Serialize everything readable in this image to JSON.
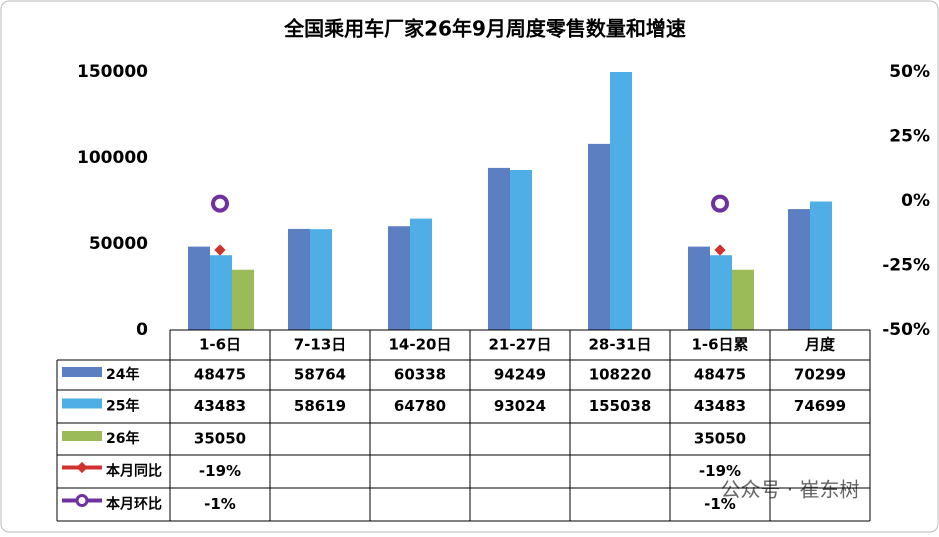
{
  "chart_data": {
    "type": "bar",
    "title": "全国乘用车厂家26年9月周度零售数量和增速",
    "categories": [
      "1-6日",
      "7-13日",
      "14-20日",
      "21-27日",
      "28-31日",
      "1-6日累",
      "月度"
    ],
    "series": [
      {
        "name": "24年",
        "color": "#5b7fc0",
        "values": [
          48475,
          58764,
          60338,
          94249,
          108220,
          48475,
          70299
        ]
      },
      {
        "name": "25年",
        "color": "#4faee6",
        "values": [
          43483,
          58619,
          64780,
          93024,
          155038,
          43483,
          74699
        ]
      },
      {
        "name": "26年",
        "color": "#9bbb59",
        "values": [
          35050,
          null,
          null,
          null,
          null,
          35050,
          null
        ]
      },
      {
        "name": "本月同比",
        "color": "#d0322e",
        "axis": "y2",
        "marker": "diamond",
        "values": [
          -19,
          null,
          null,
          null,
          null,
          -19,
          null
        ],
        "value_labels": [
          "-19%",
          null,
          null,
          null,
          null,
          "-19%",
          null
        ]
      },
      {
        "name": "本月环比",
        "color": "#7030a0",
        "axis": "y2",
        "marker": "circle",
        "values": [
          -1,
          null,
          null,
          null,
          null,
          -1,
          null
        ],
        "value_labels": [
          "-1%",
          null,
          null,
          null,
          null,
          "-1%",
          null
        ]
      }
    ],
    "ylim": [
      0,
      150000
    ],
    "yticks": [
      0,
      50000,
      100000,
      150000
    ],
    "y2lim": [
      -50,
      50
    ],
    "y2ticks": [
      {
        "value": -50,
        "label": "-50%"
      },
      {
        "value": -25,
        "label": "-25%"
      },
      {
        "value": 0,
        "label": "0%"
      },
      {
        "value": 25,
        "label": "25%"
      },
      {
        "value": 50,
        "label": "50%"
      }
    ],
    "watermark": "公众号 · 崔东树"
  }
}
